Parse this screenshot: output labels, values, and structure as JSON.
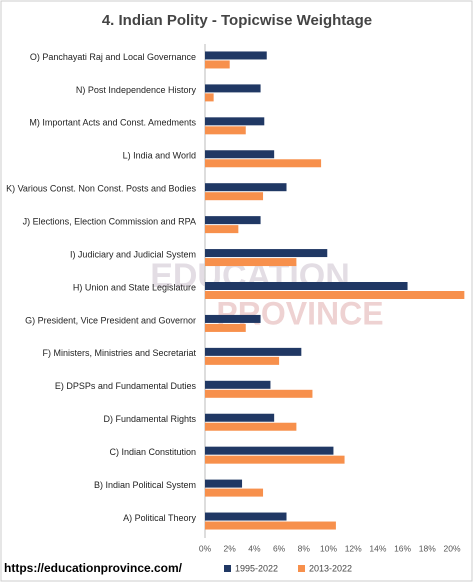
{
  "chart_data": {
    "type": "hbar",
    "title": "4. Indian Polity - Topicwise Weightage",
    "categories": [
      "O) Panchayati Raj and Local Governance",
      "N) Post Independence History",
      "M) Important Acts and Const. Amedments",
      "L) India and World",
      "K) Various Const. Non Const. Posts and Bodies",
      "J) Elections, Election Commission and RPA",
      "I) Judiciary and Judicial System",
      "H) Union and State Legislature",
      "G) President, Vice President and Governor",
      "F) Ministers, Ministries and Secretariat",
      "E) DPSPs and Fundamental Duties",
      "D) Fundamental Rights",
      "C) Indian Constitution",
      "B) Indian Political System",
      "A) Political Theory"
    ],
    "series": [
      {
        "name": "1995-2022",
        "color": "#203864",
        "values": [
          5.0,
          4.5,
          4.8,
          5.6,
          6.6,
          4.5,
          9.9,
          16.4,
          4.5,
          7.8,
          5.3,
          5.6,
          10.4,
          3.0,
          6.6
        ]
      },
      {
        "name": "2013-2022",
        "color": "#f7904c",
        "values": [
          2.0,
          0.7,
          3.3,
          9.4,
          4.7,
          2.7,
          7.4,
          21.0,
          3.3,
          6.0,
          8.7,
          7.4,
          11.3,
          4.7,
          10.6
        ]
      }
    ],
    "xlim": [
      0,
      20
    ],
    "xticks": [
      {
        "value": 0,
        "label": "0%"
      },
      {
        "value": 2,
        "label": "2%"
      },
      {
        "value": 4,
        "label": "4%"
      },
      {
        "value": 6,
        "label": "6%"
      },
      {
        "value": 8,
        "label": "8%"
      },
      {
        "value": 10,
        "label": "10%"
      },
      {
        "value": 12,
        "label": "12%"
      },
      {
        "value": 14,
        "label": "14%"
      },
      {
        "value": 16,
        "label": "16%"
      },
      {
        "value": 18,
        "label": "18%"
      },
      {
        "value": 20,
        "label": "20%"
      }
    ],
    "footer": "https://educationprovince.com/",
    "watermark": [
      "EDUCATION",
      "PROVINCE"
    ]
  }
}
